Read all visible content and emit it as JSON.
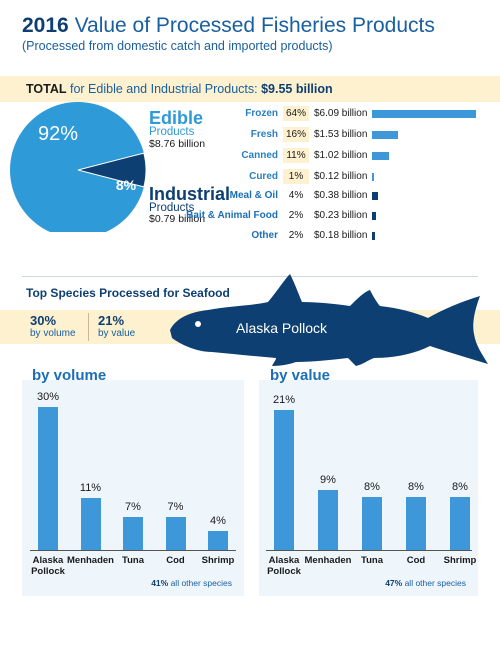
{
  "header": {
    "title_year": "2016",
    "title_rest": "Value of Processed Fisheries Products",
    "subtitle": "(Processed from domestic catch and imported products)"
  },
  "total": {
    "label_bold": "TOTAL",
    "label_rest": "for Edible and Industrial Products:",
    "value": "$9.55 billion"
  },
  "colors": {
    "edible": "#2e9ad8",
    "industrial": "#0e3f73",
    "bar": "#3d97d8",
    "accent_band": "#fdf1cf",
    "panel": "#eef5fb"
  },
  "segments": {
    "edible": {
      "title": "Edible",
      "sub": "Products",
      "value": "$8.76 billion",
      "pct_label": "92%"
    },
    "industrial": {
      "title": "Industrial",
      "sub": "Products",
      "value": "$0.79 billion",
      "pct_label": "8%"
    }
  },
  "top_species": {
    "title": "Top Species Processed for Seafood",
    "volume_pct": "30%",
    "volume_label": "by volume",
    "value_pct": "21%",
    "value_label": "by value",
    "fish_label": "Alaska Pollock",
    "fish_icon": "fish-silhouette-icon"
  },
  "chart_data": [
    {
      "type": "pie",
      "title": "",
      "categories": [
        "Edible",
        "Industrial"
      ],
      "values": [
        92,
        8
      ],
      "data_labels": [
        "92%",
        "8%"
      ],
      "colors": [
        "#2e9ad8",
        "#0e3f73"
      ]
    },
    {
      "type": "bar",
      "orientation": "horizontal",
      "title": "",
      "categories": [
        "Frozen",
        "Fresh",
        "Canned",
        "Cured",
        "Meal & Oil",
        "Bait & Animal Food",
        "Other"
      ],
      "groups": [
        "edible",
        "edible",
        "edible",
        "edible",
        "industrial",
        "industrial",
        "industrial"
      ],
      "percent_labels": [
        "64%",
        "16%",
        "11%",
        "1%",
        "4%",
        "2%",
        "2%"
      ],
      "values": [
        6.09,
        1.53,
        1.02,
        0.12,
        0.38,
        0.23,
        0.18
      ],
      "value_labels": [
        "$6.09 billion",
        "$1.53 billion",
        "$1.02 billion",
        "$0.12 billion",
        "$0.38 billion",
        "$0.23 billion",
        "$0.18 billion"
      ],
      "xlim": [
        0,
        6.09
      ]
    },
    {
      "type": "bar",
      "title": "by volume",
      "categories": [
        "Alaska Pollock",
        "Menhaden",
        "Tuna",
        "Cod",
        "Shrimp"
      ],
      "values": [
        30,
        11,
        7,
        7,
        4
      ],
      "value_labels": [
        "30%",
        "11%",
        "7%",
        "7%",
        "4%"
      ],
      "ylim": [
        0,
        30
      ],
      "note_value": "41%",
      "note_text": "all other species"
    },
    {
      "type": "bar",
      "title": "by value",
      "categories": [
        "Alaska Pollock",
        "Menhaden",
        "Tuna",
        "Cod",
        "Shrimp"
      ],
      "values": [
        21,
        9,
        8,
        8,
        8
      ],
      "value_labels": [
        "21%",
        "9%",
        "8%",
        "8%",
        "8%"
      ],
      "ylim": [
        0,
        21
      ],
      "note_value": "47%",
      "note_text": "all other species"
    }
  ]
}
